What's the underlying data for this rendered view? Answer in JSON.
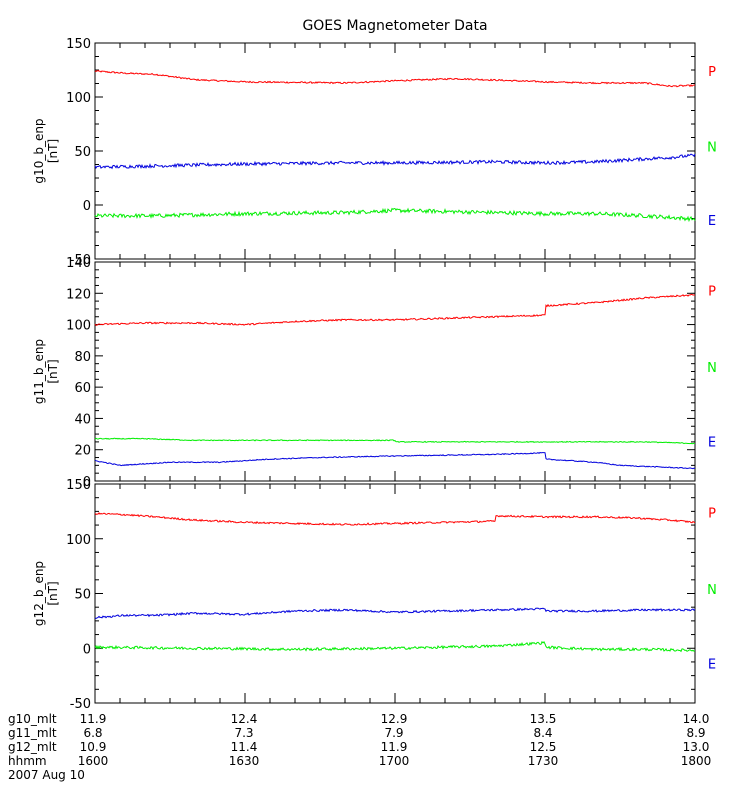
{
  "chart_data": {
    "type": "line",
    "title": "GOES Magnetometer Data",
    "x": {
      "range": [
        1600,
        1800
      ],
      "tick_hhmm": [
        "1600",
        "1630",
        "1700",
        "1730",
        "1800"
      ],
      "minor_ticks_every_min": 5
    },
    "panels": [
      {
        "ylabel": "g10_b_enp",
        "unit": "[nT]",
        "ylim": [
          -50,
          150
        ],
        "yticks": [
          "-50",
          "0",
          "50",
          "100",
          "150"
        ],
        "series": [
          {
            "name": "P",
            "color": "#ff0000",
            "noise": 0.7,
            "x": [
              1600,
              1606,
              1612,
              1620,
              1630,
              1650,
              1700,
              1712,
              1718,
              1730,
              1740,
              1750,
              1755,
              1763,
              1770,
              1780,
              1790,
              1800
            ],
            "values": [
              124,
              122,
              121,
              116,
              114,
              113,
              115,
              117,
              116,
              114,
              113,
              113,
              110,
              111,
              108,
              106,
              107,
              104
            ]
          },
          {
            "name": "N",
            "color": "#00ee00",
            "noise": 1.8,
            "x": [
              1600,
              1612,
              1630,
              1650,
              1700,
              1720,
              1730,
              1740,
              1750,
              1760,
              1770,
              1780,
              1790,
              1800
            ],
            "values": [
              -10,
              -10,
              -8,
              -7,
              -5,
              -7,
              -8,
              -8,
              -10,
              -13,
              -15,
              -18,
              -15,
              -13
            ]
          },
          {
            "name": "E",
            "color": "#0000dd",
            "noise": 1.5,
            "x": [
              1600,
              1610,
              1630,
              1650,
              1700,
              1720,
              1730,
              1740,
              1755,
              1765,
              1775,
              1785,
              1800
            ],
            "values": [
              35,
              36,
              38,
              39,
              39,
              40,
              39,
              40,
              44,
              48,
              46,
              44,
              49
            ]
          }
        ]
      },
      {
        "ylabel": "g11_b_enp",
        "unit": "[nT]",
        "ylim": [
          0,
          140
        ],
        "yticks": [
          "0",
          "20",
          "40",
          "60",
          "80",
          "100",
          "120",
          "140"
        ],
        "series": [
          {
            "name": "P",
            "color": "#ff0000",
            "noise": 0.5,
            "x": [
              1600,
              1610,
              1620,
              1630,
              1640,
              1650,
              1660,
              1670,
              1680,
              1690,
              1700,
              1710,
              1715,
              1722,
              1730,
              1740,
              1750,
              1760,
              1770,
              1780,
              1790,
              1800
            ],
            "values": [
              100,
              101,
              101,
              100,
              102,
              103,
              103,
              104,
              105,
              106,
              107,
              108,
              109,
              111,
              112,
              114,
              117,
              119,
              120,
              121,
              120,
              119
            ]
          },
          {
            "name": "N",
            "color": "#00ee00",
            "noise": 0.3,
            "x": [
              1600,
              1610,
              1620,
              1630,
              1660,
              1700,
              1720,
              1740,
              1750,
              1760,
              1770,
              1780,
              1790,
              1800
            ],
            "values": [
              27,
              27,
              26,
              26,
              26,
              25,
              25,
              25,
              25,
              24,
              23,
              22,
              22,
              22
            ]
          },
          {
            "name": "E",
            "color": "#0000dd",
            "noise": 0.3,
            "x": [
              1600,
              1605,
              1615,
              1625,
              1635,
              1645,
              1660,
              1680,
              1690,
              1705,
              1720,
              1730,
              1740,
              1745,
              1760,
              1770,
              1780,
              1790,
              1800
            ],
            "values": [
              13,
              10,
              12,
              12,
              14,
              15,
              16,
              17,
              18,
              17,
              15,
              14,
              12,
              10,
              8,
              8,
              7,
              8,
              9
            ]
          }
        ]
      },
      {
        "ylabel": "g12_b_enp",
        "unit": "[nT]",
        "ylim": [
          -50,
          150
        ],
        "yticks": [
          "-50",
          "0",
          "50",
          "100",
          "150"
        ],
        "series": [
          {
            "name": "P",
            "color": "#ff0000",
            "noise": 0.8,
            "x": [
              1600,
              1606,
              1612,
              1620,
              1630,
              1640,
              1650,
              1660,
              1670,
              1680,
              1700,
              1710,
              1720,
              1730,
              1740,
              1748,
              1755,
              1765,
              1770,
              1780,
              1790,
              1800
            ],
            "values": [
              123,
              122,
              120,
              117,
              115,
              114,
              113,
              114,
              115,
              116,
              117,
              120,
              121,
              120,
              120,
              119,
              117,
              113,
              112,
              115,
              112,
              110
            ]
          },
          {
            "name": "N",
            "color": "#00ee00",
            "noise": 1.2,
            "x": [
              1600,
              1620,
              1640,
              1660,
              1680,
              1690,
              1700,
              1720,
              1730,
              1740,
              1750,
              1760,
              1770,
              1780,
              1790,
              1800
            ],
            "values": [
              1,
              0,
              -1,
              0,
              2,
              5,
              3,
              2,
              1,
              -1,
              -1,
              -2,
              -4,
              -6,
              -5,
              -6
            ]
          },
          {
            "name": "E",
            "color": "#0000dd",
            "noise": 0.9,
            "x": [
              1600,
              1606,
              1612,
              1620,
              1630,
              1640,
              1650,
              1660,
              1670,
              1680,
              1690,
              1700,
              1710,
              1720,
              1730,
              1740,
              1750,
              1760,
              1770,
              1780,
              1790,
              1800
            ],
            "values": [
              28,
              30,
              30,
              32,
              31,
              34,
              35,
              33,
              34,
              35,
              36,
              36,
              35,
              35,
              34,
              34,
              35,
              35,
              36,
              34,
              36,
              38
            ]
          }
        ]
      }
    ],
    "footer": {
      "rows": [
        {
          "label": "g10_mlt",
          "values": [
            "11.9",
            "12.4",
            "12.9",
            "13.5",
            "14.0"
          ]
        },
        {
          "label": "g11_mlt",
          "values": [
            "6.8",
            "7.3",
            "7.9",
            "8.4",
            "8.9"
          ]
        },
        {
          "label": "g12_mlt",
          "values": [
            "10.9",
            "11.4",
            "11.9",
            "12.5",
            "13.0"
          ]
        },
        {
          "label": "hhmm",
          "values": [
            "1600",
            "1630",
            "1700",
            "1730",
            "1800"
          ]
        }
      ],
      "date": "2007 Aug 10"
    }
  }
}
